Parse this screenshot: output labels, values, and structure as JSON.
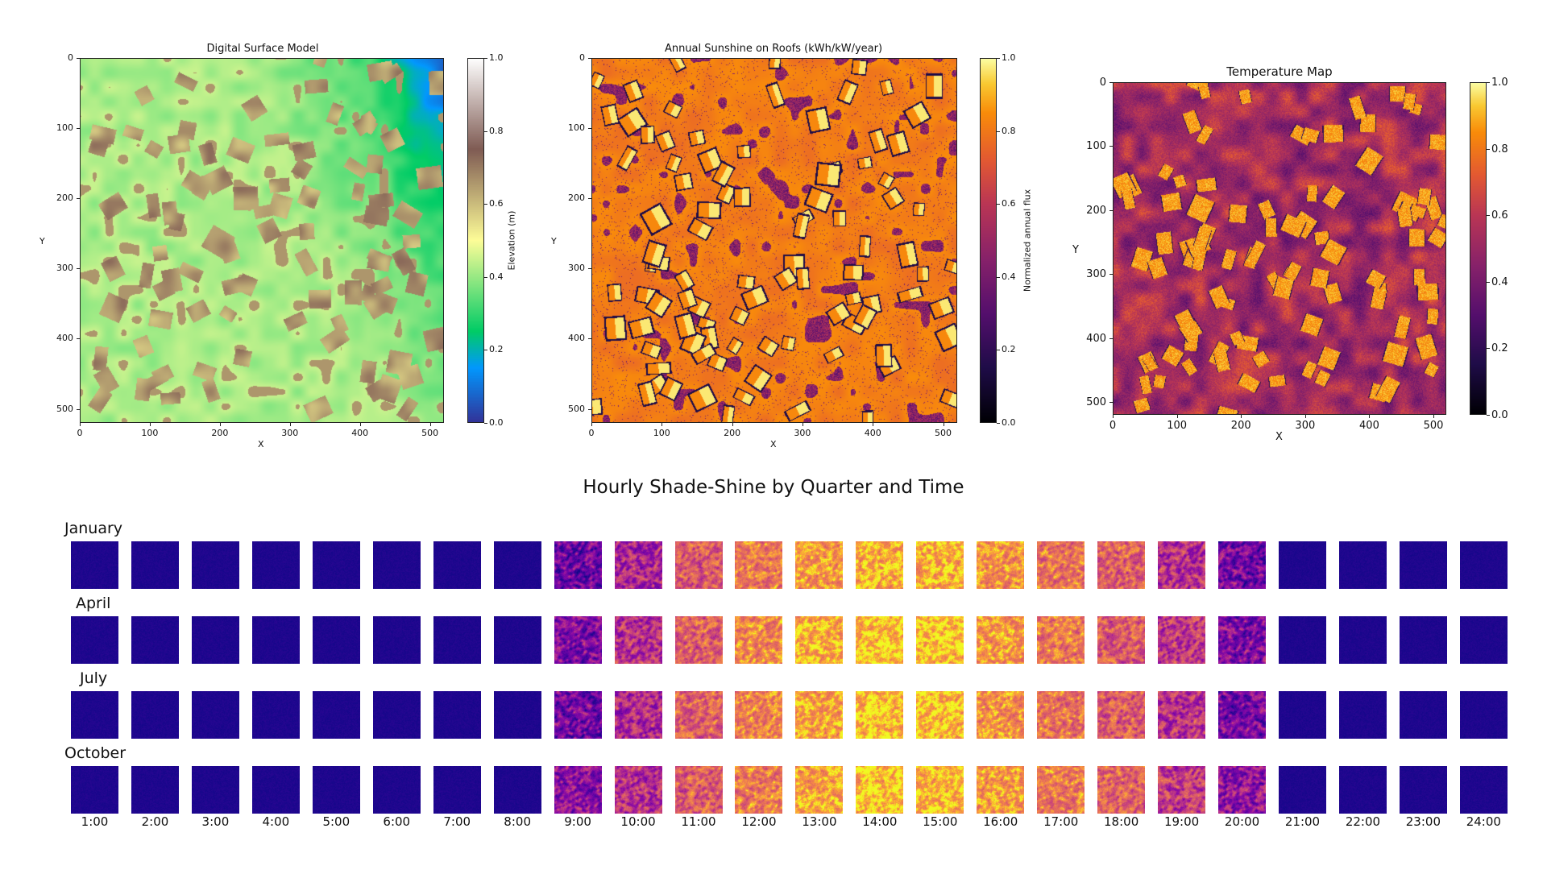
{
  "chart_data": [
    {
      "type": "heatmap",
      "title": "Digital Surface Model",
      "xlabel": "X",
      "ylabel": "Y",
      "xlim": [
        0,
        520
      ],
      "ylim": [
        520,
        0
      ],
      "xticks": [
        "0",
        "100",
        "200",
        "300",
        "400",
        "500"
      ],
      "yticks": [
        "0",
        "100",
        "200",
        "300",
        "400",
        "500"
      ],
      "colorbar": {
        "label": "Elevation (m)",
        "range": [
          0.0,
          1.0
        ],
        "ticks": [
          "0.0",
          "0.2",
          "0.4",
          "0.6",
          "0.8",
          "1.0"
        ],
        "colormap": "terrain"
      }
    },
    {
      "type": "heatmap",
      "title": "Annual Sunshine on Roofs (kWh/kW/year)",
      "xlabel": "X",
      "ylabel": "Y",
      "xlim": [
        0,
        520
      ],
      "ylim": [
        520,
        0
      ],
      "xticks": [
        "0",
        "100",
        "200",
        "300",
        "400",
        "500"
      ],
      "yticks": [
        "0",
        "100",
        "200",
        "300",
        "400",
        "500"
      ],
      "colorbar": {
        "label": "Normalized annual flux",
        "range": [
          0.0,
          1.0
        ],
        "ticks": [
          "0.0",
          "0.2",
          "0.4",
          "0.6",
          "0.8",
          "1.0"
        ],
        "colormap": "inferno"
      }
    },
    {
      "type": "heatmap",
      "title": "Temperature Map",
      "xlabel": "X",
      "ylabel": "Y",
      "xlim": [
        0,
        520
      ],
      "ylim": [
        520,
        0
      ],
      "xticks": [
        "0",
        "100",
        "200",
        "300",
        "400",
        "500"
      ],
      "yticks": [
        "0",
        "100",
        "200",
        "300",
        "400",
        "500"
      ],
      "colorbar": {
        "label": "",
        "range": [
          0.0,
          1.0
        ],
        "ticks": [
          "0.0",
          "0.2",
          "0.4",
          "0.6",
          "0.8",
          "1.0"
        ],
        "colormap": "inferno"
      }
    },
    {
      "type": "heatmap",
      "title": "Hourly Shade-Shine by Quarter and Time",
      "rows": [
        "January",
        "April",
        "July",
        "October"
      ],
      "hours": [
        "1:00",
        "2:00",
        "3:00",
        "4:00",
        "5:00",
        "6:00",
        "7:00",
        "8:00",
        "9:00",
        "10:00",
        "11:00",
        "12:00",
        "13:00",
        "14:00",
        "15:00",
        "16:00",
        "17:00",
        "18:00",
        "19:00",
        "20:00",
        "21:00",
        "22:00",
        "23:00",
        "24:00"
      ],
      "colormap": "plasma",
      "sun_level": [
        [
          0,
          0,
          0,
          0,
          0,
          0,
          0,
          0,
          0.3,
          0.5,
          0.7,
          0.8,
          0.88,
          0.92,
          0.92,
          0.86,
          0.78,
          0.72,
          0.55,
          0.32,
          0,
          0,
          0,
          0
        ],
        [
          0,
          0,
          0,
          0,
          0,
          0,
          0,
          0,
          0.35,
          0.55,
          0.72,
          0.84,
          0.92,
          0.96,
          0.95,
          0.88,
          0.8,
          0.7,
          0.58,
          0.35,
          0,
          0,
          0,
          0
        ],
        [
          0,
          0,
          0,
          0,
          0,
          0,
          0,
          0,
          0.32,
          0.52,
          0.72,
          0.82,
          0.9,
          0.95,
          0.94,
          0.86,
          0.78,
          0.7,
          0.55,
          0.33,
          0,
          0,
          0,
          0
        ],
        [
          0,
          0,
          0,
          0,
          0,
          0,
          0,
          0,
          0.4,
          0.55,
          0.7,
          0.8,
          0.9,
          0.94,
          0.94,
          0.88,
          0.8,
          0.72,
          0.58,
          0.4,
          0,
          0,
          0,
          0
        ]
      ]
    }
  ]
}
